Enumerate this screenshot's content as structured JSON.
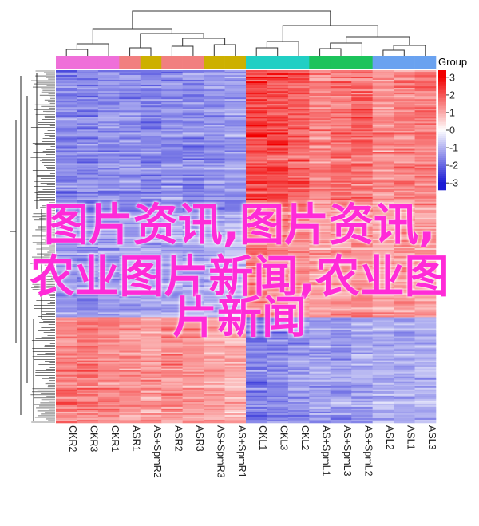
{
  "chart_data": {
    "type": "heatmap",
    "columns": [
      "CKR2",
      "CKR3",
      "CKR1",
      "ASR1",
      "AS+SpmR2",
      "ASR2",
      "ASR3",
      "AS+SpmR3",
      "AS+SpmR1",
      "CKL1",
      "CKL3",
      "CKL2",
      "AS+SpmL1",
      "AS+SpmL3",
      "AS+SpmL2",
      "ASL2",
      "ASL1",
      "ASL3"
    ],
    "column_groups": [
      "#ef6fd9",
      "#ef6fd9",
      "#ef6fd9",
      "#f17f7f",
      "#cdb000",
      "#f17f7f",
      "#f17f7f",
      "#cdb000",
      "#cdb000",
      "#21cfc4",
      "#21cfc4",
      "#21cfc4",
      "#1cc35b",
      "#1cc35b",
      "#1cc35b",
      "#6aa2f0",
      "#6aa2f0",
      "#6aa2f0"
    ],
    "row_blocks": [
      {
        "share": 0.4,
        "levels": [
          -1.6,
          -1.6,
          -1.5,
          -1.5,
          -1.6,
          -1.5,
          -1.6,
          -1.4,
          -1.3,
          2.2,
          2.1,
          1.9,
          1.4,
          1.6,
          1.7,
          1.3,
          1.4,
          1.5
        ]
      },
      {
        "share": 0.3,
        "levels": [
          -1.3,
          -1.4,
          -1.3,
          -1.1,
          -1.2,
          -1.1,
          -1.2,
          -1.0,
          -0.9,
          1.6,
          1.5,
          1.3,
          1.1,
          1.2,
          1.3,
          1.1,
          1.2,
          1.2
        ]
      },
      {
        "share": 0.3,
        "levels": [
          1.5,
          1.6,
          1.4,
          1.3,
          1.2,
          1.4,
          1.3,
          1.1,
          1.0,
          -1.6,
          -1.5,
          -1.4,
          -1.2,
          -1.3,
          -1.1,
          -1.0,
          -1.1,
          -1.0
        ]
      }
    ],
    "legend": {
      "title": "Group",
      "ticks": [
        3,
        2,
        1,
        0,
        -1,
        -2,
        -3
      ]
    },
    "colors": {
      "high": "#f10000",
      "mid": "#ffffff",
      "low": "#1b1bd4"
    }
  },
  "overlay": {
    "line1": "图片资讯,图片资讯,",
    "line2": "农业图片新闻,农业图",
    "line3": "片新闻"
  }
}
